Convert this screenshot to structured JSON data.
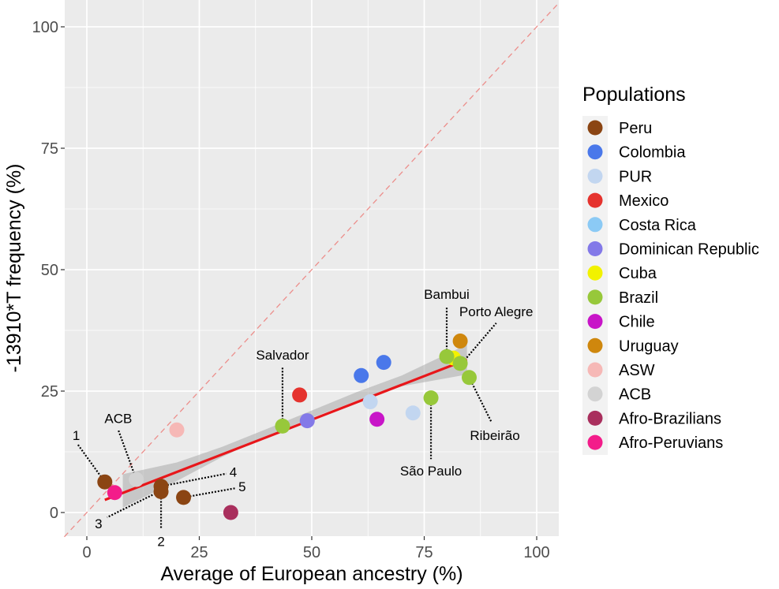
{
  "chart_data": {
    "type": "scatter",
    "xlabel": "Average of European ancestry (%)",
    "ylabel": "-13910*T frequency (%)",
    "xlim": [
      -5,
      105
    ],
    "ylim": [
      -5,
      105
    ],
    "x_ticks": [
      0,
      25,
      50,
      75,
      100
    ],
    "y_ticks": [
      0,
      25,
      50,
      75,
      100
    ],
    "grid": true,
    "legend_title": "Populations",
    "legend_position": "right",
    "identity_line": true,
    "regression": {
      "x1": 4,
      "y1": 2.6,
      "x2": 84.5,
      "y2": 31.5,
      "color": "#e8161a"
    },
    "confidence_band": [
      {
        "x": 8,
        "upper": 7.9,
        "lower": 1.0
      },
      {
        "x": 20,
        "upper": 10.3,
        "lower": 6.5
      },
      {
        "x": 30,
        "upper": 13.5,
        "lower": 11.4
      },
      {
        "x": 40,
        "upper": 17.2,
        "lower": 15.7
      },
      {
        "x": 50,
        "upper": 21.0,
        "lower": 19.5
      },
      {
        "x": 60,
        "upper": 24.8,
        "lower": 23.0
      },
      {
        "x": 70,
        "upper": 28.2,
        "lower": 26.0
      },
      {
        "x": 84.5,
        "upper": 34.6,
        "lower": 28.4
      }
    ],
    "groups": [
      {
        "name": "Peru",
        "color": "#8b4513",
        "points": [
          [
            4,
            6.3
          ],
          [
            16.5,
            5.4
          ],
          [
            16.5,
            4.3
          ],
          [
            21.5,
            3.1
          ]
        ]
      },
      {
        "name": "Colombia",
        "color": "#4a78ea",
        "points": [
          [
            61,
            28.2
          ],
          [
            66,
            30.9
          ]
        ]
      },
      {
        "name": "PUR",
        "color": "#c2d6f0",
        "points": [
          [
            63,
            22.8
          ],
          [
            72.5,
            20.5
          ]
        ]
      },
      {
        "name": "Mexico",
        "color": "#e5332e",
        "points": [
          [
            47.3,
            24.2
          ]
        ]
      },
      {
        "name": "Costa Rica",
        "color": "#8bcaf5",
        "points": []
      },
      {
        "name": "Dominican Republic",
        "color": "#8379e8",
        "points": [
          [
            49,
            18.9
          ]
        ]
      },
      {
        "name": "Cuba",
        "color": "#f2f200",
        "points": [
          [
            81.5,
            31.8
          ]
        ]
      },
      {
        "name": "Brazil",
        "color": "#97c83a",
        "points": [
          [
            43.5,
            17.8
          ],
          [
            76.5,
            23.6
          ],
          [
            80,
            32.1
          ],
          [
            83,
            30.7
          ],
          [
            85,
            27.8
          ]
        ]
      },
      {
        "name": "Chile",
        "color": "#c815c8",
        "points": [
          [
            64.5,
            19.2
          ]
        ]
      },
      {
        "name": "Uruguay",
        "color": "#cf870d",
        "points": [
          [
            83,
            35.3
          ]
        ]
      },
      {
        "name": "ASW",
        "color": "#f6b8b6",
        "points": [
          [
            20,
            17
          ]
        ]
      },
      {
        "name": "ACB",
        "color": "#d3d3d3",
        "points": [
          [
            11,
            6.8
          ]
        ]
      },
      {
        "name": "Afro-Brazilians",
        "color": "#a92f5d",
        "points": [
          [
            32,
            0
          ]
        ]
      },
      {
        "name": "Afro-Peruvians",
        "color": "#f31c8a",
        "points": [
          [
            6.2,
            4.1
          ]
        ]
      }
    ],
    "annotations": [
      {
        "text": "1",
        "x": 4,
        "y": 6.3,
        "lx": -2,
        "ly": 14
      },
      {
        "text": "2",
        "x": 16.5,
        "y": 4.3,
        "lx": 16.5,
        "ly": -3.5
      },
      {
        "text": "3",
        "x": 16.5,
        "y": 4.5,
        "lx": 4.5,
        "ly": -1
      },
      {
        "text": "4",
        "x": 16.5,
        "y": 5.4,
        "lx": 31,
        "ly": 8
      },
      {
        "text": "5",
        "x": 21.5,
        "y": 3.1,
        "lx": 33,
        "ly": 5
      },
      {
        "text": "ACB",
        "x": 11,
        "y": 6.8,
        "lx": 7,
        "ly": 17
      },
      {
        "text": "Salvador",
        "x": 43.5,
        "y": 17.8,
        "lx": 43.5,
        "ly": 30
      },
      {
        "text": "São Paulo",
        "x": 76.5,
        "y": 23.6,
        "lx": 76.5,
        "ly": 11
      },
      {
        "text": "Bambui",
        "x": 80,
        "y": 32.1,
        "lx": 80,
        "ly": 42.5
      },
      {
        "text": "Porto Alegre",
        "x": 84,
        "y": 31.4,
        "lx": 91,
        "ly": 39
      },
      {
        "text": "Ribeirão",
        "x": 85,
        "y": 27.8,
        "lx": 90,
        "ly": 18.5
      }
    ]
  }
}
